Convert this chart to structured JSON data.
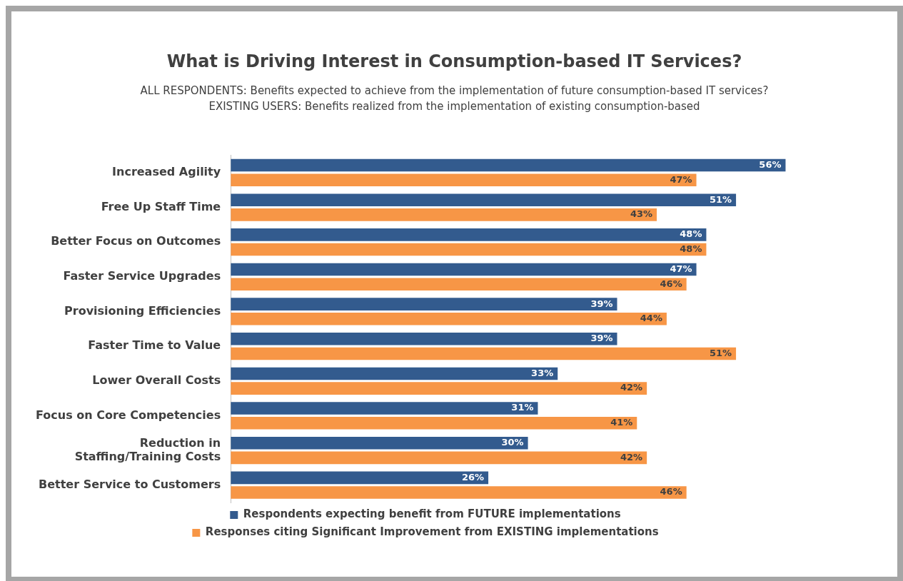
{
  "chart_data": {
    "type": "bar",
    "orientation": "horizontal",
    "title": "What is Driving Interest in Consumption-based IT Services?",
    "subtitle": "ALL RESPONDENTS: Benefits expected to achieve from the implementation of future consumption-based IT services?\nEXISTING USERS: Benefits realized from the implementation of existing consumption-based",
    "categories": [
      "Increased Agility",
      "Free Up Staff Time",
      "Better Focus on Outcomes",
      "Faster Service Upgrades",
      "Provisioning Efficiencies",
      "Faster Time to Value",
      "Lower Overall Costs",
      "Focus on Core Competencies",
      "Reduction in Staffing/Training Costs",
      "Better Service to Customers"
    ],
    "series": [
      {
        "name": "Respondents expecting benefit from FUTURE implementations",
        "color": "#335b8e",
        "values": [
          56,
          51,
          48,
          47,
          39,
          39,
          33,
          31,
          30,
          26
        ],
        "value_labels": [
          "56%",
          "51%",
          "48%",
          "47%",
          "39%",
          "39%",
          "33%",
          "31%",
          "30%",
          "26%"
        ]
      },
      {
        "name": "Responses citing Significant Improvement from EXISTING implementations",
        "color": "#f79646",
        "values": [
          47,
          43,
          48,
          46,
          44,
          51,
          42,
          41,
          42,
          46
        ],
        "value_labels": [
          "47%",
          "43%",
          "48%",
          "46%",
          "44%",
          "51%",
          "42%",
          "41%",
          "42%",
          "46%"
        ]
      }
    ],
    "legend": "bottom"
  }
}
